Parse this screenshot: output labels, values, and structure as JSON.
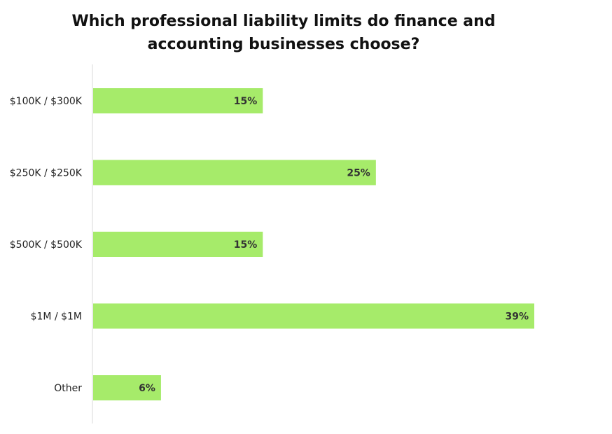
{
  "chart_data": {
    "type": "bar",
    "orientation": "horizontal",
    "title_lines": [
      "Which professional liability limits do finance and",
      "accounting businesses choose?"
    ],
    "categories": [
      "$100K / $300K",
      "$250K / $250K",
      "$500K / $500K",
      "$1M / $1M",
      "Other"
    ],
    "values": [
      15,
      25,
      15,
      39,
      6
    ],
    "value_labels": [
      "15%",
      "25%",
      "15%",
      "39%",
      "6%"
    ],
    "unit": "%",
    "xlim": [
      0,
      39
    ],
    "grid": false,
    "legend": "none",
    "bar_color": "#a6eb6a",
    "axis_color": "#d9d9d9"
  }
}
